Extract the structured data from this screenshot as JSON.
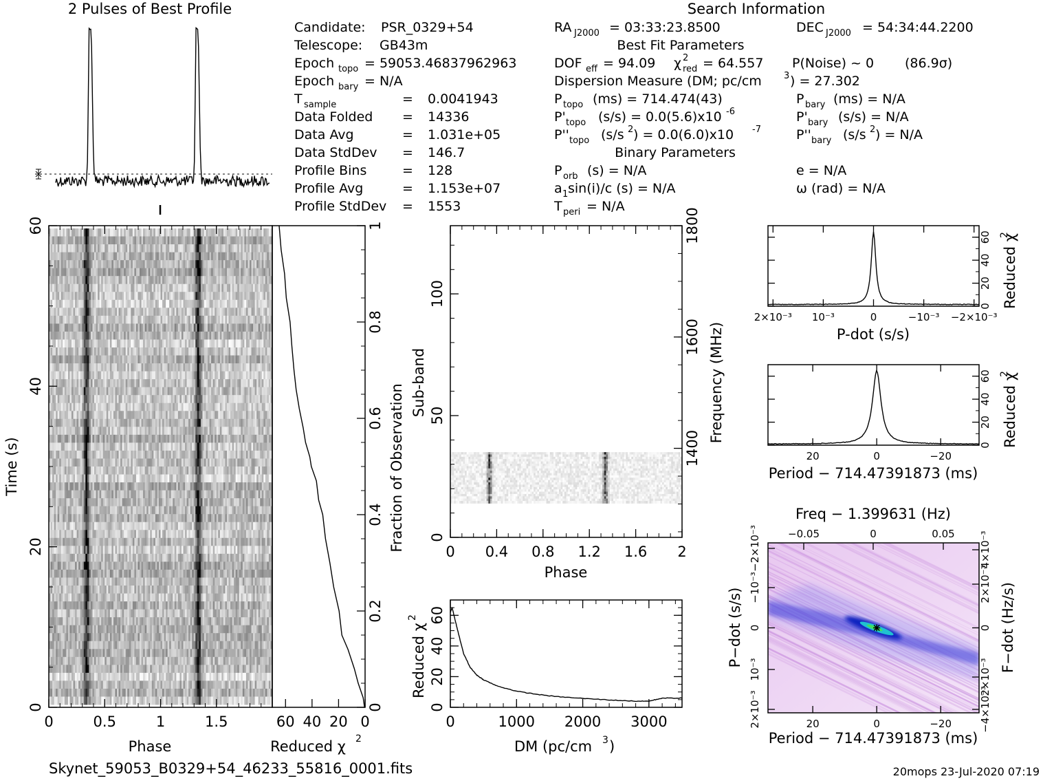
{
  "title_profile": "2 Pulses of Best Profile",
  "title_search": "Search Information",
  "filename": "Skynet_59053_B0329+54_46233_55816_0001.fits",
  "footer": "20mops 23-Jul-2020 07:19",
  "info_left": [
    {
      "label": "Candidate:",
      "value": "PSR_0329+54"
    },
    {
      "label": "Telescope:",
      "value": "GB43m"
    },
    {
      "label": "Epoch",
      "sub": "topo",
      "value": "= 59053.46837962963"
    },
    {
      "label": "Epoch",
      "sub": "bary",
      "value": "= N/A"
    },
    {
      "label": "T",
      "sub": "sample",
      "value": "0.0041943"
    },
    {
      "label": "Data Folded",
      "value": "14336"
    },
    {
      "label": "Data Avg",
      "value": "1.031e+05"
    },
    {
      "label": "Data StdDev",
      "value": "146.7"
    },
    {
      "label": "Profile Bins",
      "value": "128"
    },
    {
      "label": "Profile Avg",
      "value": "1.153e+07"
    },
    {
      "label": "Profile StdDev",
      "value": "1553"
    }
  ],
  "info_mid": {
    "ra": "RA",
    "ra_sub": "J2000",
    "ra_val": "= 03:33:23.8500",
    "dec": "DEC",
    "dec_sub": "J2000",
    "dec_val": "= 54:34:44.2200",
    "best_fit": "Best Fit Parameters",
    "dof": "DOF",
    "dof_sub": "eff",
    "dof_val": "= 94.09",
    "chi": "χ",
    "chi_sup": "2",
    "chi_sub": "red",
    "chi_val": "= 64.557",
    "pnoise": "P(Noise) ~ 0",
    "sigma": "(86.9σ)",
    "dm": "Dispersion Measure (DM; pc/cm",
    "dm_sup": "3",
    "dm_val": ") = 27.302",
    "ptopo": "P",
    "ptopo_sub": "topo",
    "ptopo_val": "(ms) =  714.474(43)",
    "pdtopo": "P'",
    "pdtopo_sub": "topo",
    "pdtopo_val": "(s/s) = 0.0(5.6)x10",
    "pdtopo_exp": "-6",
    "pddtopo": "P''",
    "pddtopo_sub": "topo",
    "pddtopo_val": "(s/s",
    "pddtopo_sup": "2",
    "pddtopo_val2": ") = 0.0(6.0)x10",
    "pddtopo_exp": "-7",
    "binary": "Binary Parameters",
    "porb": "P",
    "porb_sub": "orb",
    "porb_val": "(s) = N/A",
    "asini": "a",
    "asini_sub": "1",
    "asini_val": "sin(i)/c (s) = N/A",
    "tperi": "T",
    "tperi_sub": "peri",
    "tperi_val": "= N/A"
  },
  "info_right": {
    "pbary": "P",
    "pbary_sub": "bary",
    "pbary_val": "(ms) = N/A",
    "pdbary": "P'",
    "pdbary_sub": "bary",
    "pdbary_val": "(s/s) = N/A",
    "pddbary": "P''",
    "pddbary_sub": "bary",
    "pddbary_val": "(s/s",
    "pddbary_sup": "2",
    "pddbary_val2": ") = N/A",
    "ecc": "e = N/A",
    "omega": "ω (rad) = N/A"
  },
  "chart_data": [
    {
      "id": "profile",
      "type": "line",
      "title": "2 Pulses of Best Profile",
      "x": {
        "range": [
          0,
          2
        ]
      },
      "y": {
        "range": [
          0,
          1
        ]
      },
      "pulse_phases": [
        0.33,
        1.33
      ],
      "baseline": 0.12,
      "noise": 0.025,
      "pulse_peak": 1.0
    },
    {
      "id": "time_phase",
      "type": "heatmap",
      "xlabel": "Phase",
      "ylabel": "Time (s)",
      "xlim": [
        0,
        2
      ],
      "ylim": [
        0,
        60
      ],
      "xticks": [
        "0",
        "0.5",
        "1",
        "1.5"
      ],
      "yticks": [
        "0",
        "20",
        "40",
        "60"
      ],
      "pulse_phases": [
        0.33,
        1.33
      ],
      "rows": 60,
      "cols": 128,
      "colormap": "gray"
    },
    {
      "id": "chi_vs_time",
      "type": "line",
      "xlabel": "Reduced χ",
      "xlabel_sup": "2",
      "ylabel": "Fraction of Observation",
      "xlim": [
        70,
        0
      ],
      "ylim": [
        0,
        1
      ],
      "xticks": [
        "60",
        "40",
        "20",
        "0"
      ],
      "yticks": [
        "0",
        "0.2",
        "0.4",
        "0.6",
        "0.8",
        "1"
      ],
      "points": [
        [
          0,
          0
        ],
        [
          2,
          0.02
        ],
        [
          5,
          0.05
        ],
        [
          8,
          0.08
        ],
        [
          13,
          0.12
        ],
        [
          17,
          0.15
        ],
        [
          20,
          0.2
        ],
        [
          24,
          0.25
        ],
        [
          27,
          0.3
        ],
        [
          30,
          0.35
        ],
        [
          32,
          0.4
        ],
        [
          35,
          0.43
        ],
        [
          37,
          0.47
        ],
        [
          40,
          0.5
        ],
        [
          42,
          0.52
        ],
        [
          45,
          0.55
        ],
        [
          47,
          0.58
        ],
        [
          50,
          0.62
        ],
        [
          52,
          0.66
        ],
        [
          54,
          0.7
        ],
        [
          55,
          0.75
        ],
        [
          57,
          0.8
        ],
        [
          59,
          0.85
        ],
        [
          61,
          0.9
        ],
        [
          63,
          0.95
        ],
        [
          65,
          1
        ]
      ]
    },
    {
      "id": "subband_phase",
      "type": "heatmap",
      "xlabel": "Phase",
      "ylabel": "Sub-band",
      "y2label": "Frequency (MHz)",
      "xlim": [
        0,
        2
      ],
      "ylim": [
        0,
        128
      ],
      "y2lim": [
        1240,
        1800
      ],
      "xticks": [
        "0",
        "0.4",
        "0.8",
        "1.2",
        "1.6",
        "2"
      ],
      "yticks": [
        "0",
        "50",
        "100"
      ],
      "y2ticks": [
        "1400",
        "1600",
        "1800"
      ],
      "band_rows": [
        14,
        35
      ],
      "pulse_phases": [
        0.33,
        1.33
      ]
    },
    {
      "id": "dm_curve",
      "type": "line",
      "xlabel": "DM (pc/cm",
      "xlabel_sup": "3",
      "xlabel_end": ")",
      "ylabel": "Reduced χ",
      "ylabel_sup": "2",
      "xlim": [
        0,
        3500
      ],
      "ylim": [
        0,
        70
      ],
      "xticks": [
        "0",
        "1000",
        "2000",
        "3000"
      ],
      "yticks": [
        "0",
        "20",
        "40",
        "60"
      ],
      "x": [
        0,
        27,
        100,
        200,
        300,
        400,
        500,
        700,
        1000,
        1300,
        1600,
        2000,
        2400,
        2800,
        3000,
        3200,
        3500
      ],
      "y": [
        62,
        65,
        52,
        35,
        26,
        21,
        18,
        14,
        10.5,
        8.5,
        7,
        5.8,
        4.8,
        4,
        4,
        6,
        6
      ]
    },
    {
      "id": "pdot_curve",
      "type": "line",
      "xlabel": "P-dot (s/s)",
      "ylabel": "Reduced χ",
      "ylabel_sup": "2",
      "xlim": [
        0.0021,
        -0.0021
      ],
      "ylim": [
        0,
        70
      ],
      "xticks": [
        "2×10⁻³",
        "10⁻³",
        "0",
        "−10⁻³",
        "−2×10⁻³"
      ],
      "yticks": [
        "0",
        "20",
        "40",
        "60"
      ],
      "peak": 64.6,
      "floor": 1.5,
      "center": 0
    },
    {
      "id": "period_curve",
      "type": "line",
      "xlabel": "Period − 714.47391873 (ms)",
      "ylabel": "Reduced χ",
      "ylabel_sup": "2",
      "xlim": [
        34,
        -32
      ],
      "ylim": [
        0,
        70
      ],
      "xticks": [
        "20",
        "0",
        "−20"
      ],
      "yticks": [
        "0",
        "20",
        "40",
        "60"
      ],
      "peak": 64.6,
      "floor": 1.0,
      "center": 0
    },
    {
      "id": "p_pdot_plane",
      "type": "heatmap",
      "title": "Freq − 1.399631 (Hz)",
      "xlabel": "Period − 714.47391873 (ms)",
      "ylabel": "P−dot (s/s)",
      "y2label": "F−dot (Hz/s)",
      "xlim": [
        34,
        -32
      ],
      "ylim": [
        -0.0023,
        0.0023
      ],
      "xticks": [
        "20",
        "0",
        "−20"
      ],
      "x2ticks": [
        "−0.05",
        "0",
        "0.05"
      ],
      "yticks": [
        "2×10⁻³",
        "10⁻³",
        "0",
        "−10⁻³",
        "−2×10⁻³"
      ],
      "y2ticks": [
        "−4×10⁻³",
        "2×10⁻³",
        "0",
        "2×10⁻³",
        "4×10⁻³"
      ],
      "best": [
        0,
        0
      ]
    }
  ]
}
